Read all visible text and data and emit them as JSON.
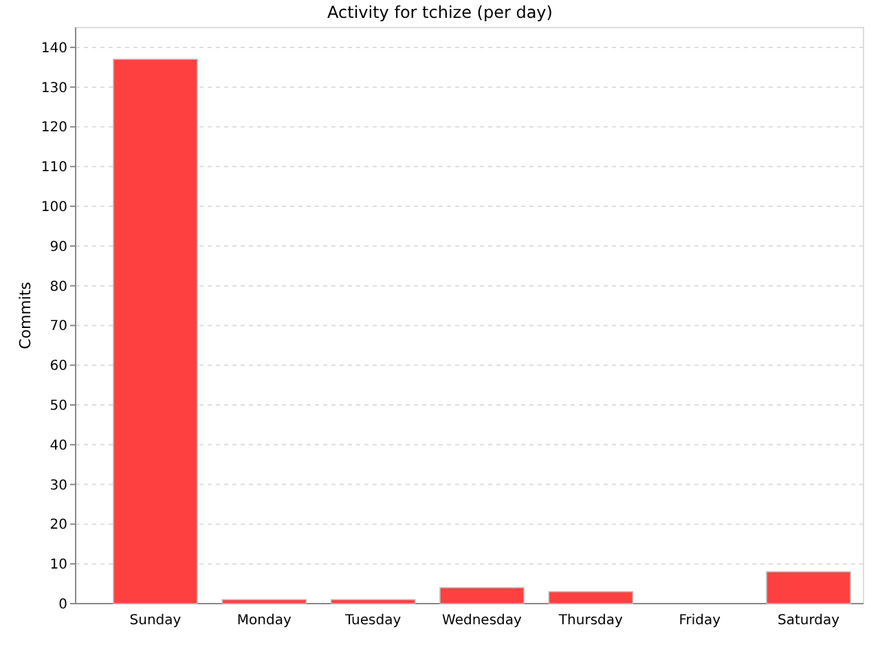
{
  "chart_data": {
    "type": "bar",
    "title": "Activity for tchize (per day)",
    "ylabel": "Commits",
    "categories": [
      "Sunday",
      "Monday",
      "Tuesday",
      "Wednesday",
      "Thursday",
      "Friday",
      "Saturday"
    ],
    "values": [
      137,
      1,
      1,
      4,
      3,
      0,
      8
    ],
    "color": "#ff4040",
    "ylim": [
      0,
      145
    ],
    "yticks": [
      0,
      10,
      20,
      30,
      40,
      50,
      60,
      70,
      80,
      90,
      100,
      110,
      120,
      130,
      140
    ],
    "grid": "y"
  }
}
